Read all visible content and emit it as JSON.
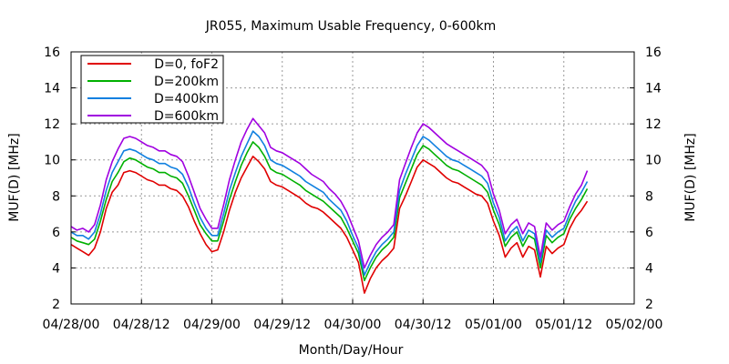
{
  "chart_data": {
    "type": "line",
    "title": "JR055, Maximum Usable Frequency, 0-600km",
    "xlabel": "Month/Day/Hour",
    "ylabel_left": "MUF(D) [MHz]",
    "ylabel_right": "MUF(D) [MHz]",
    "ylim": [
      2,
      16
    ],
    "yticks": [
      2,
      4,
      6,
      8,
      10,
      12,
      14,
      16
    ],
    "xlim_hours": [
      0,
      96
    ],
    "xticks": [
      {
        "h": 0,
        "label": "04/28/00"
      },
      {
        "h": 12,
        "label": "04/28/12"
      },
      {
        "h": 24,
        "label": "04/29/00"
      },
      {
        "h": 36,
        "label": "04/29/12"
      },
      {
        "h": 48,
        "label": "04/30/00"
      },
      {
        "h": 60,
        "label": "04/30/12"
      },
      {
        "h": 72,
        "label": "05/01/00"
      },
      {
        "h": 84,
        "label": "05/01/12"
      },
      {
        "h": 96,
        "label": "05/02/00"
      }
    ],
    "grid": true,
    "legend_position": "top-left",
    "x_hours": [
      0,
      1,
      2,
      3,
      4,
      5,
      6,
      7,
      8,
      9,
      10,
      11,
      12,
      13,
      14,
      15,
      16,
      17,
      18,
      19,
      20,
      21,
      22,
      23,
      24,
      25,
      26,
      27,
      28,
      29,
      30,
      31,
      32,
      33,
      34,
      35,
      36,
      37,
      38,
      39,
      40,
      41,
      42,
      43,
      44,
      45,
      46,
      47,
      48,
      49,
      50,
      51,
      52,
      53,
      54,
      55,
      56,
      57,
      58,
      59,
      60,
      61,
      62,
      63,
      64,
      65,
      66,
      67,
      68,
      69,
      70,
      71,
      72,
      73,
      74,
      75,
      76,
      77,
      78,
      79,
      80,
      81,
      82,
      83,
      84,
      85,
      86,
      87,
      88
    ],
    "series": [
      {
        "name": "D=0, foF2",
        "color": "#e00000",
        "values": [
          5.3,
          5.1,
          4.9,
          4.7,
          5.1,
          6.0,
          7.3,
          8.2,
          8.6,
          9.3,
          9.4,
          9.3,
          9.1,
          8.9,
          8.8,
          8.6,
          8.6,
          8.4,
          8.3,
          8.0,
          7.4,
          6.6,
          5.9,
          5.3,
          4.9,
          5.0,
          6.0,
          7.2,
          8.2,
          9.0,
          9.6,
          10.2,
          9.9,
          9.5,
          8.8,
          8.6,
          8.5,
          8.3,
          8.1,
          7.9,
          7.6,
          7.4,
          7.3,
          7.1,
          6.8,
          6.5,
          6.2,
          5.7,
          5.0,
          4.3,
          2.6,
          3.4,
          4.0,
          4.4,
          4.7,
          5.1,
          7.3,
          8.0,
          8.8,
          9.6,
          10.0,
          9.8,
          9.6,
          9.3,
          9.0,
          8.8,
          8.7,
          8.5,
          8.3,
          8.1,
          8.0,
          7.6,
          6.6,
          5.8,
          4.6,
          5.1,
          5.4,
          4.6,
          5.2,
          5.0,
          3.5,
          5.2,
          4.8,
          5.1,
          5.3,
          6.2,
          6.8,
          7.2,
          7.7
        ]
      },
      {
        "name": "D=200km",
        "color": "#00b000",
        "values": [
          5.7,
          5.5,
          5.4,
          5.3,
          5.6,
          6.6,
          7.8,
          8.8,
          9.3,
          9.9,
          10.1,
          10.0,
          9.8,
          9.6,
          9.5,
          9.3,
          9.3,
          9.1,
          9.0,
          8.7,
          8.0,
          7.2,
          6.4,
          5.9,
          5.5,
          5.5,
          6.6,
          7.8,
          8.8,
          9.7,
          10.4,
          11.0,
          10.7,
          10.2,
          9.5,
          9.3,
          9.2,
          9.0,
          8.8,
          8.6,
          8.3,
          8.1,
          7.9,
          7.7,
          7.4,
          7.1,
          6.8,
          6.2,
          5.5,
          4.8,
          3.3,
          4.0,
          4.6,
          5.0,
          5.3,
          5.7,
          7.9,
          8.7,
          9.5,
          10.3,
          10.8,
          10.6,
          10.3,
          10.0,
          9.7,
          9.5,
          9.4,
          9.2,
          9.0,
          8.8,
          8.6,
          8.2,
          7.2,
          6.4,
          5.2,
          5.7,
          6.0,
          5.2,
          5.8,
          5.6,
          4.0,
          5.8,
          5.4,
          5.7,
          5.9,
          6.7,
          7.3,
          7.8,
          8.4
        ]
      },
      {
        "name": "D=400km",
        "color": "#1080e0",
        "values": [
          6.0,
          5.8,
          5.8,
          5.6,
          6.0,
          7.0,
          8.3,
          9.3,
          9.9,
          10.5,
          10.6,
          10.5,
          10.3,
          10.1,
          10.0,
          9.8,
          9.8,
          9.6,
          9.5,
          9.2,
          8.5,
          7.6,
          6.8,
          6.2,
          5.8,
          5.8,
          7.0,
          8.3,
          9.3,
          10.2,
          10.9,
          11.6,
          11.3,
          10.8,
          10.0,
          9.8,
          9.7,
          9.5,
          9.3,
          9.1,
          8.8,
          8.6,
          8.4,
          8.2,
          7.8,
          7.5,
          7.2,
          6.6,
          5.8,
          5.1,
          3.6,
          4.3,
          4.9,
          5.3,
          5.6,
          6.0,
          8.3,
          9.2,
          10.0,
          10.8,
          11.3,
          11.1,
          10.8,
          10.5,
          10.2,
          10.0,
          9.9,
          9.7,
          9.5,
          9.3,
          9.1,
          8.7,
          7.6,
          6.8,
          5.5,
          6.0,
          6.3,
          5.5,
          6.1,
          5.9,
          4.3,
          6.1,
          5.7,
          6.0,
          6.2,
          7.0,
          7.7,
          8.2,
          8.8
        ]
      },
      {
        "name": "D=600km",
        "color": "#a000e0",
        "values": [
          6.3,
          6.1,
          6.2,
          6.0,
          6.4,
          7.5,
          8.9,
          9.9,
          10.6,
          11.2,
          11.3,
          11.2,
          11.0,
          10.8,
          10.7,
          10.5,
          10.5,
          10.3,
          10.2,
          9.9,
          9.1,
          8.2,
          7.3,
          6.7,
          6.2,
          6.2,
          7.5,
          8.9,
          10.0,
          11.0,
          11.7,
          12.3,
          11.9,
          11.5,
          10.7,
          10.5,
          10.4,
          10.2,
          10.0,
          9.8,
          9.5,
          9.2,
          9.0,
          8.8,
          8.4,
          8.1,
          7.7,
          7.1,
          6.3,
          5.5,
          4.0,
          4.7,
          5.3,
          5.7,
          6.0,
          6.4,
          8.9,
          9.8,
          10.7,
          11.5,
          12.0,
          11.8,
          11.5,
          11.2,
          10.9,
          10.7,
          10.5,
          10.3,
          10.1,
          9.9,
          9.7,
          9.3,
          8.1,
          7.2,
          5.9,
          6.4,
          6.7,
          5.9,
          6.5,
          6.3,
          4.6,
          6.5,
          6.1,
          6.4,
          6.6,
          7.4,
          8.1,
          8.6,
          9.4
        ]
      }
    ]
  }
}
